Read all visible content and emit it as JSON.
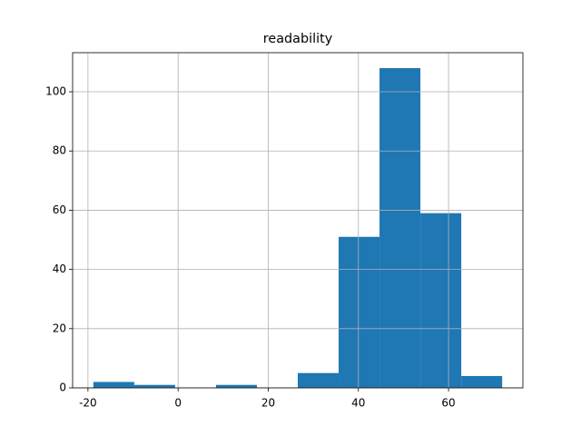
{
  "chart_data": {
    "type": "histogram",
    "title": "readability",
    "bins": [
      -18.8,
      -9.73,
      -0.66,
      8.41,
      17.48,
      26.55,
      35.62,
      44.69,
      53.76,
      62.83,
      71.9
    ],
    "values": [
      2,
      1,
      0,
      1,
      0,
      5,
      51,
      108,
      59,
      4
    ],
    "color": "#1f77b4",
    "xlim": [
      -23.4,
      76.5
    ],
    "xticks": [
      -20,
      0,
      20,
      40,
      60
    ],
    "ylim": [
      0,
      113.2
    ],
    "yticks": [
      0,
      20,
      40,
      60,
      80,
      100
    ],
    "grid": true
  }
}
